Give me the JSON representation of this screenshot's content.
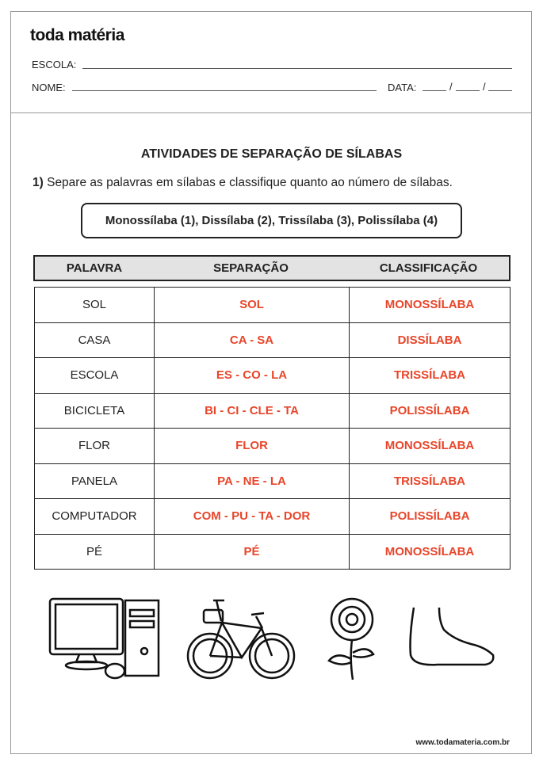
{
  "header": {
    "logo": "toda matéria",
    "school_label": "ESCOLA:",
    "name_label": "NOME:",
    "date_label": "DATA:",
    "date_sep": "/"
  },
  "title": "ATIVIDADES DE SEPARAÇÃO DE SÍLABAS",
  "instruction": {
    "number": "1)",
    "text": " Separe as palavras em sílabas e classifique quanto ao número de sílabas."
  },
  "legend": "Monossílaba (1), Dissílaba (2), Trissílaba (3), Polissílaba (4)",
  "table": {
    "headers": [
      "PALAVRA",
      "SEPARAÇÃO",
      "CLASSIFICAÇÃO"
    ],
    "rows": [
      [
        "SOL",
        "SOL",
        "MONOSSÍLABA"
      ],
      [
        "CASA",
        "CA - SA",
        "DISSÍLABA"
      ],
      [
        "ESCOLA",
        "ES - CO - LA",
        "TRISSÍLABA"
      ],
      [
        "BICICLETA",
        "BI - CI - CLE - TA",
        "POLISSÍLABA"
      ],
      [
        "FLOR",
        "FLOR",
        "MONOSSÍLABA"
      ],
      [
        "PANELA",
        "PA - NE - LA",
        "TRISSÍLABA"
      ],
      [
        "COMPUTADOR",
        "COM - PU - TA - DOR",
        "POLISSÍLABA"
      ],
      [
        "PÉ",
        "PÉ",
        "MONOSSÍLABA"
      ]
    ]
  },
  "images": [
    "computer-icon",
    "bicycle-icon",
    "flower-icon",
    "foot-icon"
  ],
  "footer": "www.todamateria.com.br",
  "colors": {
    "answer": "#e8452a",
    "header_bg": "#e3e3e3"
  }
}
